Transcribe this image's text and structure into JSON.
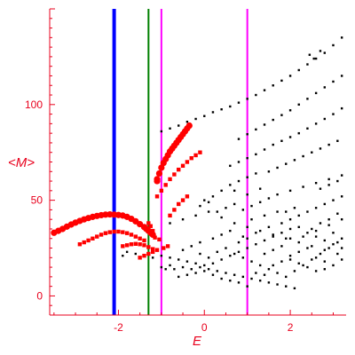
{
  "chart_data": {
    "type": "scatter",
    "title": "",
    "xlabel": "E",
    "ylabel": "<M>",
    "xlim": [
      -3.6,
      3.3
    ],
    "ylim": [
      -10,
      150
    ],
    "grid": false,
    "x_ticks": [
      -2,
      0,
      2
    ],
    "y_ticks": [
      0,
      50,
      100
    ],
    "axis_color": "#e8001c",
    "vertical_lines": [
      {
        "x": -2.1,
        "color": "#0000ff",
        "weight": "thick"
      },
      {
        "x": -1.3,
        "color": "#008000",
        "weight": "thin"
      },
      {
        "x": -1.0,
        "color": "#ff00ff",
        "weight": "thin"
      },
      {
        "x": 1.0,
        "color": "#ff00ff",
        "weight": "thin"
      }
    ],
    "series": [
      {
        "color": "#ff0000",
        "marker": "large",
        "points": [
          [
            -3.5,
            33
          ],
          [
            -3.4,
            34
          ],
          [
            -3.3,
            35
          ],
          [
            -3.2,
            36.2
          ],
          [
            -3.1,
            37.3
          ],
          [
            -3.0,
            38.3
          ],
          [
            -2.9,
            39.2
          ],
          [
            -2.8,
            40
          ],
          [
            -2.7,
            40.7
          ],
          [
            -2.6,
            41.3
          ],
          [
            -2.5,
            41.8
          ],
          [
            -2.4,
            42.2
          ],
          [
            -2.3,
            42.5
          ],
          [
            -2.2,
            42.6
          ],
          [
            -2.1,
            42.5
          ],
          [
            -2.0,
            42.3
          ],
          [
            -1.9,
            42
          ],
          [
            -1.8,
            41.3
          ],
          [
            -1.7,
            40.3
          ],
          [
            -1.6,
            39
          ],
          [
            -1.5,
            37.5
          ],
          [
            -1.4,
            36
          ],
          [
            -1.35,
            35
          ],
          [
            -1.3,
            34
          ],
          [
            -1.25,
            33
          ],
          [
            -1.2,
            32
          ],
          [
            -1.1,
            60
          ],
          [
            -1.1,
            61
          ],
          [
            -1.05,
            64
          ],
          [
            -1.0,
            67
          ],
          [
            -0.95,
            69.5
          ],
          [
            -0.9,
            71.5
          ],
          [
            -0.85,
            73.5
          ],
          [
            -0.8,
            75.5
          ],
          [
            -0.75,
            77
          ],
          [
            -0.7,
            78.5
          ],
          [
            -0.65,
            80
          ],
          [
            -0.6,
            81.5
          ],
          [
            -0.55,
            83
          ],
          [
            -0.5,
            84.5
          ],
          [
            -0.45,
            86
          ],
          [
            -0.4,
            87.5
          ],
          [
            -0.35,
            89
          ]
        ]
      },
      {
        "color": "#ff0000",
        "marker": "medium",
        "points": [
          [
            -2.9,
            27
          ],
          [
            -2.8,
            28
          ],
          [
            -2.7,
            29
          ],
          [
            -2.6,
            30
          ],
          [
            -2.5,
            31
          ],
          [
            -2.4,
            32
          ],
          [
            -2.3,
            32.8
          ],
          [
            -2.2,
            33.3
          ],
          [
            -2.1,
            33.6
          ],
          [
            -2.0,
            33.6
          ],
          [
            -1.9,
            33.3
          ],
          [
            -1.8,
            32.8
          ],
          [
            -1.7,
            32
          ],
          [
            -1.6,
            31
          ],
          [
            -1.5,
            30
          ],
          [
            -1.4,
            29
          ],
          [
            -1.3,
            35
          ],
          [
            -1.25,
            36.5
          ],
          [
            -1.3,
            38
          ],
          [
            -1.2,
            34
          ],
          [
            -1.15,
            30.5
          ],
          [
            -1.05,
            29.5
          ],
          [
            -1.1,
            52
          ],
          [
            -1.0,
            55
          ],
          [
            -0.9,
            58
          ],
          [
            -0.8,
            61
          ],
          [
            -0.7,
            63.5
          ],
          [
            -0.6,
            66
          ],
          [
            -0.5,
            68
          ],
          [
            -0.4,
            70
          ],
          [
            -0.3,
            72
          ],
          [
            -0.2,
            73.5
          ],
          [
            -0.1,
            75
          ],
          [
            -1.9,
            26
          ],
          [
            -1.8,
            26.5
          ],
          [
            -1.7,
            27
          ],
          [
            -1.6,
            27.2
          ],
          [
            -1.5,
            27
          ],
          [
            -1.4,
            26.5
          ],
          [
            -1.3,
            25.5
          ],
          [
            -1.2,
            24.5
          ],
          [
            -1.5,
            20
          ],
          [
            -1.4,
            21
          ],
          [
            -1.3,
            22
          ],
          [
            -1.2,
            23
          ],
          [
            -1.1,
            24
          ],
          [
            -0.95,
            25
          ],
          [
            -0.85,
            26
          ],
          [
            -0.8,
            42
          ],
          [
            -0.7,
            45
          ],
          [
            -0.6,
            48
          ],
          [
            -0.5,
            50
          ],
          [
            -0.4,
            52
          ]
        ]
      },
      {
        "color": "#000000",
        "marker": "small",
        "points": [
          [
            -1.0,
            86
          ],
          [
            -0.8,
            87.5
          ],
          [
            -0.6,
            89
          ],
          [
            -0.4,
            91
          ],
          [
            -0.2,
            92.5
          ],
          [
            0,
            94
          ],
          [
            0.2,
            96
          ],
          [
            0.4,
            97.5
          ],
          [
            0.6,
            99
          ],
          [
            0.8,
            101
          ],
          [
            1.0,
            103
          ],
          [
            1.2,
            105
          ],
          [
            1.4,
            107.5
          ],
          [
            1.6,
            110
          ],
          [
            1.8,
            112.5
          ],
          [
            2.0,
            115
          ],
          [
            2.2,
            118
          ],
          [
            2.4,
            121
          ],
          [
            2.6,
            124
          ],
          [
            2.8,
            127
          ],
          [
            3.0,
            131
          ],
          [
            3.2,
            135
          ],
          [
            2.45,
            126
          ],
          [
            2.55,
            124
          ],
          [
            2.7,
            128
          ],
          [
            0.8,
            82
          ],
          [
            1.0,
            84.5
          ],
          [
            1.2,
            87
          ],
          [
            1.4,
            89.5
          ],
          [
            1.6,
            92
          ],
          [
            1.8,
            94.5
          ],
          [
            2.0,
            97
          ],
          [
            2.2,
            100
          ],
          [
            2.4,
            103
          ],
          [
            2.6,
            106
          ],
          [
            2.8,
            109
          ],
          [
            3.0,
            112
          ],
          [
            3.2,
            115
          ],
          [
            0.6,
            68
          ],
          [
            0.8,
            70
          ],
          [
            1.0,
            72
          ],
          [
            1.2,
            74
          ],
          [
            1.4,
            76.5
          ],
          [
            1.6,
            79
          ],
          [
            1.8,
            81
          ],
          [
            2.0,
            83
          ],
          [
            2.2,
            85
          ],
          [
            2.4,
            87.5
          ],
          [
            2.6,
            90
          ],
          [
            2.8,
            92.5
          ],
          [
            3.0,
            95
          ],
          [
            3.2,
            98
          ],
          [
            1.5,
            65
          ],
          [
            1.7,
            67
          ],
          [
            1.9,
            69
          ],
          [
            2.1,
            71
          ],
          [
            2.3,
            73
          ],
          [
            2.5,
            75
          ],
          [
            2.7,
            77
          ],
          [
            2.9,
            79
          ],
          [
            3.1,
            81
          ],
          [
            0.6,
            58
          ],
          [
            0.8,
            60
          ],
          [
            1.0,
            62
          ],
          [
            1.2,
            64
          ],
          [
            0.7,
            55
          ],
          [
            1.0,
            53
          ],
          [
            1.3,
            56
          ],
          [
            0,
            50
          ],
          [
            0.2,
            52
          ],
          [
            0.4,
            55
          ],
          [
            -0.1,
            47
          ],
          [
            0.1,
            49
          ],
          [
            0.3,
            44
          ],
          [
            0.5,
            46
          ],
          [
            0.7,
            48
          ],
          [
            0.9,
            45
          ],
          [
            1.1,
            47
          ],
          [
            1.3,
            49
          ],
          [
            1.5,
            51
          ],
          [
            1.7,
            53
          ],
          [
            2.0,
            55
          ],
          [
            2.3,
            57
          ],
          [
            2.6,
            59
          ],
          [
            2.9,
            61
          ],
          [
            3.2,
            63
          ],
          [
            2.2,
            42
          ],
          [
            2.4,
            44
          ],
          [
            2.6,
            46
          ],
          [
            2.8,
            48
          ],
          [
            3.0,
            50
          ],
          [
            3.2,
            52
          ],
          [
            -0.8,
            38
          ],
          [
            -0.5,
            40
          ],
          [
            -0.2,
            42
          ],
          [
            0.1,
            44
          ],
          [
            0.4,
            41
          ],
          [
            0.7,
            38
          ],
          [
            1.0,
            36
          ],
          [
            1.3,
            34
          ],
          [
            1.6,
            32
          ],
          [
            1.9,
            30
          ],
          [
            2.2,
            28
          ],
          [
            2.5,
            26
          ],
          [
            2.8,
            24
          ],
          [
            3.1,
            22
          ],
          [
            -1.0,
            21
          ],
          [
            -0.8,
            20
          ],
          [
            -0.6,
            19
          ],
          [
            -0.4,
            18
          ],
          [
            -0.2,
            17
          ],
          [
            0,
            16
          ],
          [
            0.2,
            17
          ],
          [
            0.4,
            19
          ],
          [
            0.6,
            21
          ],
          [
            0.8,
            23
          ],
          [
            1.0,
            25
          ],
          [
            1.2,
            27
          ],
          [
            1.4,
            29
          ],
          [
            1.6,
            31
          ],
          [
            1.8,
            33
          ],
          [
            2.0,
            35
          ],
          [
            -0.9,
            14
          ],
          [
            -0.7,
            14
          ],
          [
            -0.5,
            15
          ],
          [
            -0.3,
            14
          ],
          [
            -0.1,
            15
          ],
          [
            0.1,
            14
          ],
          [
            0.3,
            13
          ],
          [
            0.5,
            12
          ],
          [
            0.7,
            11
          ],
          [
            0.9,
            10
          ],
          [
            1.1,
            9
          ],
          [
            1.3,
            8
          ],
          [
            1.5,
            7
          ],
          [
            1.7,
            6
          ],
          [
            1.9,
            5
          ],
          [
            2.1,
            4
          ],
          [
            -0.6,
            10
          ],
          [
            -0.4,
            11
          ],
          [
            -0.2,
            12
          ],
          [
            0,
            13
          ],
          [
            0.2,
            11
          ],
          [
            0.4,
            9
          ],
          [
            0.6,
            8
          ],
          [
            0.8,
            7
          ],
          [
            1.0,
            5
          ],
          [
            0.3,
            23
          ],
          [
            0.5,
            25
          ],
          [
            0.7,
            22
          ],
          [
            0.9,
            20
          ],
          [
            1.1,
            18
          ],
          [
            1.3,
            16
          ],
          [
            1.5,
            14
          ],
          [
            1.7,
            12
          ],
          [
            1.9,
            10
          ],
          [
            2.1,
            13
          ],
          [
            2.3,
            16
          ],
          [
            2.5,
            19
          ],
          [
            2.7,
            22
          ],
          [
            2.9,
            25
          ],
          [
            3.1,
            28
          ],
          [
            1.8,
            38
          ],
          [
            2.0,
            40
          ],
          [
            2.2,
            36
          ],
          [
            2.4,
            33
          ],
          [
            2.6,
            31
          ],
          [
            2.8,
            29
          ],
          [
            3.0,
            27
          ],
          [
            3.2,
            25
          ],
          [
            -1.8,
            23
          ],
          [
            -1.6,
            22
          ],
          [
            -1.4,
            21
          ],
          [
            -1.2,
            20
          ],
          [
            -1.9,
            21
          ],
          [
            -1.0,
            15
          ],
          [
            -0.8,
            16
          ],
          [
            -0.5,
            24
          ],
          [
            -0.3,
            26
          ],
          [
            -0.1,
            28
          ],
          [
            0.9,
            31
          ],
          [
            1.2,
            33
          ],
          [
            1.5,
            36
          ],
          [
            2.0,
            30
          ],
          [
            2.3,
            31
          ],
          [
            2.6,
            34
          ],
          [
            2.9,
            37
          ],
          [
            3.2,
            40
          ],
          [
            1.4,
            22
          ],
          [
            1.6,
            24
          ],
          [
            1.8,
            26
          ],
          [
            2.0,
            21
          ],
          [
            2.2,
            23
          ],
          [
            2.4,
            25
          ],
          [
            2.6,
            20
          ],
          [
            2.8,
            18
          ],
          [
            3.0,
            16
          ],
          [
            3.2,
            19
          ],
          [
            1.2,
            12
          ],
          [
            1.4,
            11
          ],
          [
            1.6,
            16
          ],
          [
            1.8,
            18
          ],
          [
            2.0,
            19
          ],
          [
            2.2,
            17
          ],
          [
            2.4,
            15
          ],
          [
            2.6,
            13
          ],
          [
            2.8,
            14
          ],
          [
            0.2,
            30
          ],
          [
            0.4,
            32
          ],
          [
            0.6,
            34
          ],
          [
            0.8,
            28
          ],
          [
            1.0,
            30
          ],
          [
            0.1,
            20
          ],
          [
            -0.1,
            22
          ],
          [
            1.9,
            44
          ],
          [
            2.1,
            46
          ],
          [
            2.5,
            35
          ],
          [
            2.7,
            38
          ],
          [
            3.0,
            33
          ],
          [
            3.2,
            30
          ],
          [
            2.7,
            56
          ],
          [
            2.9,
            58
          ],
          [
            3.1,
            60
          ],
          [
            1.1,
            40
          ],
          [
            1.4,
            42
          ],
          [
            1.7,
            44
          ],
          [
            2.9,
            40
          ],
          [
            3.1,
            43
          ]
        ]
      }
    ]
  }
}
